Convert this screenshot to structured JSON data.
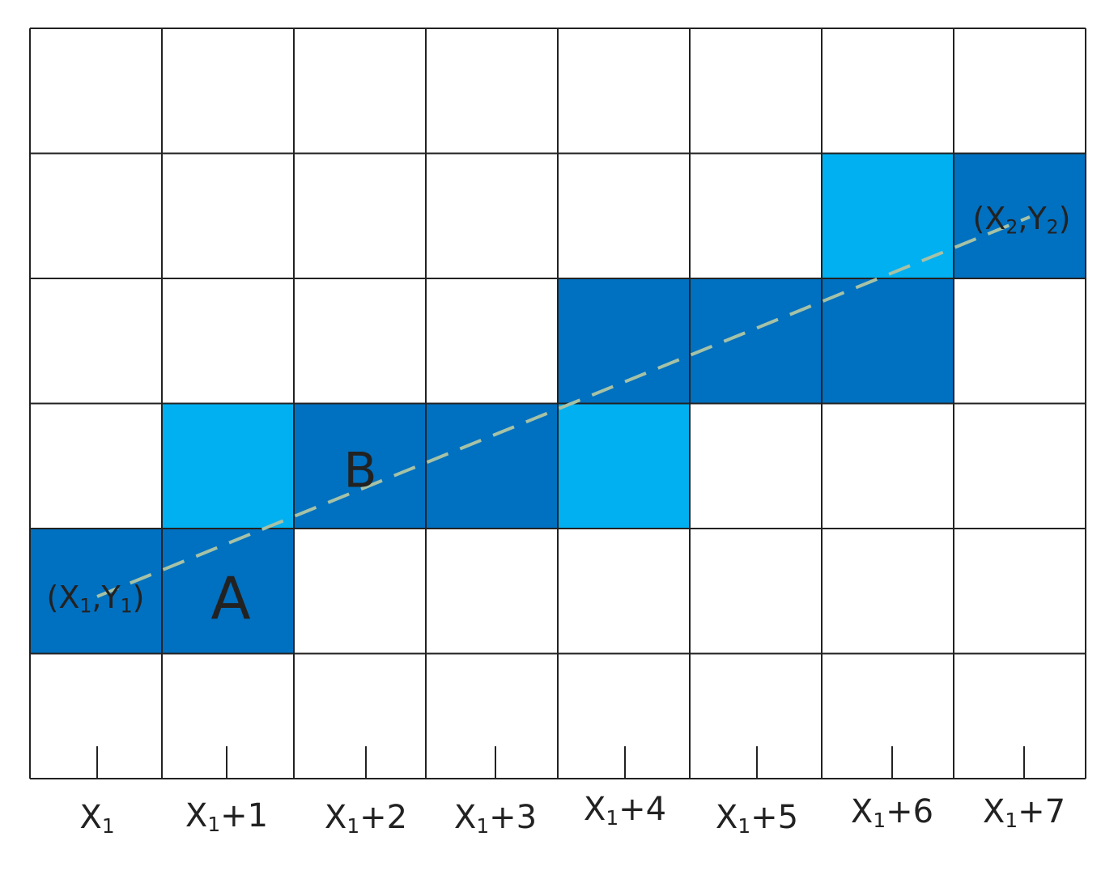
{
  "cell_labels": {
    "a": "A",
    "b": "B"
  },
  "points": [
    [
      "(X",
      "1",
      ",Y",
      "1",
      ")"
    ],
    [
      "(X",
      "2",
      ",Y",
      "2",
      ")"
    ]
  ],
  "x_labels": [
    [
      "X",
      "1"
    ],
    [
      "X",
      "1",
      "+1"
    ],
    [
      "X",
      "1",
      "+2"
    ],
    [
      "X",
      "1",
      "+3"
    ],
    [
      "X",
      "1",
      "+4"
    ],
    [
      "X",
      "1",
      "+5"
    ],
    [
      "X",
      "1",
      "+6"
    ],
    [
      "X",
      "1",
      "+7"
    ]
  ]
}
